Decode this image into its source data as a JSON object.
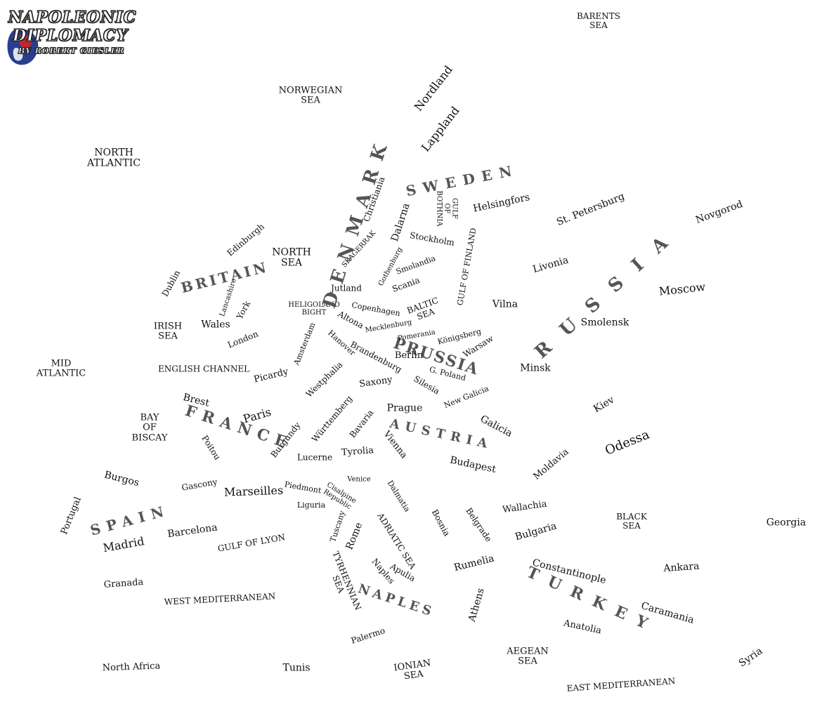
{
  "logo": {
    "line1": "NAPOLEONIC",
    "line2": "DIPLOMACY",
    "line3": "BY ROBERT GIESLER",
    "colors": {
      "blue": "#2b3d8f",
      "red": "#c2272d"
    }
  },
  "labels": {
    "barents_sea": "BARENTS\nSEA",
    "norwegian_sea": "NORWEGIAN\nSEA",
    "north_atlantic": "NORTH\nATLANTIC",
    "nordland": "Nordland",
    "lappland": "Lappland",
    "denmark": "DENMARK",
    "sweden": "SWEDEN",
    "christiania": "Christiania",
    "dalarna": "Dalarna",
    "gulf_of_bothnia": "GULF\nOF\nBOTHNIA",
    "helsingfors": "Helsingfors",
    "st_petersburg": "St. Petersburg",
    "novgorod": "Novgorod",
    "edinburgh": "Edinburgh",
    "north_sea": "NORTH\nSEA",
    "skagerrak": "SKAGERRAK",
    "stockholm": "Stockholm",
    "gulf_of_finland": "GULF OF FINLAND",
    "russia": "RUSSIA",
    "dublin": "Dublin",
    "britain": "BRITAIN",
    "gothenburg": "Gothenburg",
    "smolandia": "Smolandia",
    "livonia": "Livonia",
    "moscow": "Moscow",
    "lancashire": "Lancashire",
    "jutland": "Jutland",
    "scania": "Scania",
    "heligoland_bight": "HELIGOLAND\nBIGHT",
    "york": "York",
    "copenhagen": "Copenhagen",
    "baltic_sea": "BALTIC\nSEA",
    "vilna": "Vilna",
    "irish_sea": "IRISH\nSEA",
    "wales": "Wales",
    "altona": "Altona",
    "mecklenburg": "Mecklenburg",
    "smolensk": "Smolensk",
    "london": "London",
    "amsterdam": "Amsterdam",
    "hanover": "Hanover",
    "pomerania": "Pomerania",
    "konigsberg": "Königsberg",
    "prussia": "PRUSSIA",
    "warsaw": "Warsaw",
    "mid_atlantic": "MID\nATLANTIC",
    "english_channel": "ENGLISH CHANNEL",
    "brandenburg": "Brandenburg",
    "berlin": "Berlin",
    "minsk": "Minsk",
    "picardy": "Picardy",
    "g_poland": "G. Poland",
    "westphalia": "Westphalia",
    "saxony": "Saxony",
    "silesia": "Silesia",
    "new_galicia": "New Galicia",
    "brest": "Brest",
    "kiev": "Kiev",
    "bay_of_biscay": "BAY\nOF\nBISCAY",
    "france": "FRANCE",
    "paris": "Paris",
    "wurttemberg": "Württemberg",
    "prague": "Prague",
    "galicia": "Galicia",
    "bavaria": "Bavaria",
    "austria": "AUSTRIA",
    "odessa": "Odessa",
    "poitou": "Poitou",
    "burgundy": "Burgundy",
    "vienna": "Vienna",
    "tyrolia": "Tyrolia",
    "lucerne": "Lucerne",
    "moldavia": "Moldavia",
    "budapest": "Budapest",
    "burgos": "Burgos",
    "gascony": "Gascony",
    "marseilles": "Marseilles",
    "venice": "Venice",
    "piedmont": "Piedmont",
    "cisalpine_republic": "Cisalpine\nRepublic",
    "dalmatia": "Dalmatia",
    "liguria": "Liguria",
    "wallachia": "Wallachia",
    "black_sea": "BLACK\nSEA",
    "georgia": "Georgia",
    "portugal": "Portugal",
    "spain": "SPAIN",
    "bosnia": "Bosnia",
    "belgrade": "Belgrade",
    "barcelona": "Barcelona",
    "tuscany": "Tuscany",
    "rome": "Rome",
    "adriatic_sea": "ADRIATIC SEA",
    "bulgaria": "Bulgaria",
    "madrid": "Madrid",
    "gulf_of_lyon": "GULF OF LYON",
    "tyrhennian_sea": "TYRHENNIAN\nSEA",
    "naples": "Naples",
    "apulia": "Apulia",
    "rumelia": "Rumelia",
    "constantinople": "Constantinople",
    "ankara": "Ankara",
    "granada": "Granada",
    "turkey": "TURKEY",
    "naples_nation": "NAPLES",
    "west_mediterranean": "WEST MEDITERRANEAN",
    "athens": "Athens",
    "caramania": "Caramania",
    "anatolia": "Anatolia",
    "palermo": "Palermo",
    "aegean_sea": "AEGEAN\nSEA",
    "north_africa": "North Africa",
    "tunis": "Tunis",
    "ionian_sea": "IONIAN\nSEA",
    "syria": "Syria",
    "east_mediterranean": "EAST MEDITERRANEAN"
  }
}
